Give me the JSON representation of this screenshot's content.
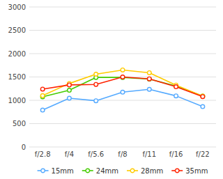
{
  "chart_data": {
    "type": "line",
    "categories": [
      "f/2.8",
      "f/4",
      "f/5.6",
      "f/8",
      "f/11",
      "f/16",
      "f/22"
    ],
    "series": [
      {
        "name": "15mm",
        "color": "#55aaff",
        "values": [
          790,
          1045,
          990,
          1175,
          1235,
          1095,
          865
        ]
      },
      {
        "name": "24mm",
        "color": "#44cc00",
        "values": [
          1075,
          1215,
          1490,
          1490,
          1455,
          1305,
          1090
        ]
      },
      {
        "name": "28mm",
        "color": "#ffcc00",
        "values": [
          1100,
          1360,
          1560,
          1650,
          1590,
          1325,
          1090
        ]
      },
      {
        "name": "35mm",
        "color": "#ff2200",
        "values": [
          1240,
          1330,
          1340,
          1500,
          1460,
          1290,
          1080
        ]
      }
    ],
    "ylim": [
      0,
      3000
    ],
    "yticks": [
      0,
      500,
      1000,
      1500,
      2000,
      2500,
      3000
    ],
    "grid": true,
    "marker": "circle",
    "legend": "bottom"
  }
}
